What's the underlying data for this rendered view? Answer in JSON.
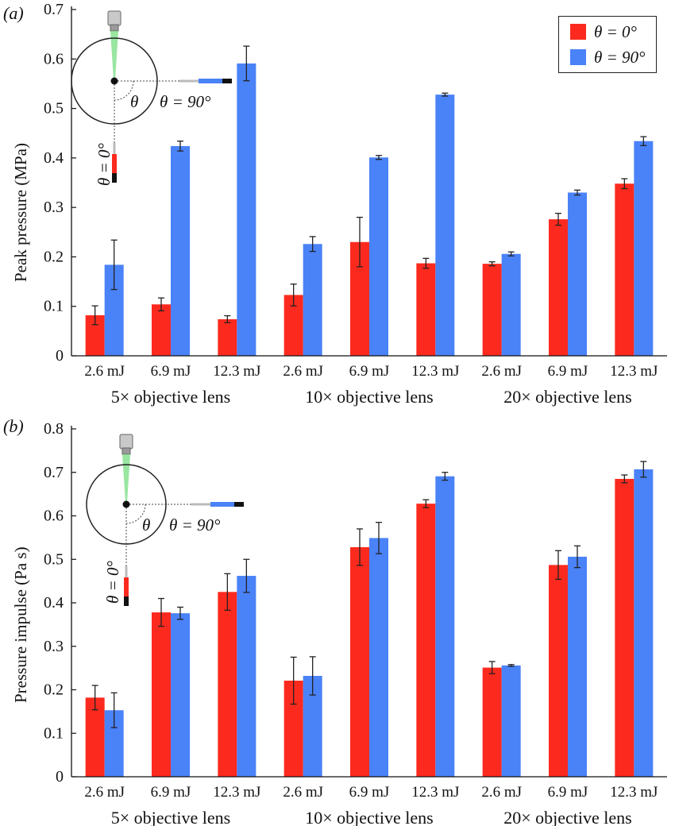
{
  "colors": {
    "theta0": "#fc2a1e",
    "theta90": "#4a82f7",
    "axis": "#111111"
  },
  "legend": {
    "theta0_label": "θ = 0°",
    "theta90_label": "θ = 90°"
  },
  "inset": {
    "theta_symbol": "θ",
    "label_90": "θ = 90°",
    "label_0": "θ = 0°"
  },
  "chart_data": [
    {
      "type": "bar",
      "panel_label": "(a)",
      "ylabel": "Peak pressure (MPa)",
      "ylim": [
        0,
        0.7
      ],
      "yticks": [
        0,
        0.1,
        0.2,
        0.3,
        0.4,
        0.5,
        0.6,
        0.7
      ],
      "categories": [
        "2.6 mJ",
        "6.9 mJ",
        "12.3 mJ",
        "2.6 mJ",
        "6.9 mJ",
        "12.3 mJ",
        "2.6 mJ",
        "6.9 mJ",
        "12.3 mJ"
      ],
      "groups": [
        "5× objective lens",
        "10× objective lens",
        "20× objective lens"
      ],
      "legend_position": "top-right",
      "series": [
        {
          "name": "θ = 0°",
          "color": "#fc2a1e",
          "values": [
            0.082,
            0.104,
            0.074,
            0.123,
            0.23,
            0.187,
            0.186,
            0.276,
            0.348
          ],
          "errors": [
            0.019,
            0.013,
            0.007,
            0.022,
            0.05,
            0.01,
            0.004,
            0.012,
            0.01
          ]
        },
        {
          "name": "θ = 90°",
          "color": "#4a82f7",
          "values": [
            0.184,
            0.424,
            0.591,
            0.226,
            0.401,
            0.528,
            0.206,
            0.33,
            0.434
          ],
          "errors": [
            0.05,
            0.01,
            0.035,
            0.015,
            0.004,
            0.003,
            0.004,
            0.005,
            0.009
          ]
        }
      ]
    },
    {
      "type": "bar",
      "panel_label": "(b)",
      "ylabel": "Pressure impulse (Pa s)",
      "ylim": [
        0,
        0.8
      ],
      "yticks": [
        0,
        0.1,
        0.2,
        0.3,
        0.4,
        0.5,
        0.6,
        0.7,
        0.8
      ],
      "categories": [
        "2.6 mJ",
        "6.9 mJ",
        "12.3 mJ",
        "2.6 mJ",
        "6.9 mJ",
        "12.3 mJ",
        "2.6 mJ",
        "6.9 mJ",
        "12.3 mJ"
      ],
      "groups": [
        "5× objective lens",
        "10× objective lens",
        "20× objective lens"
      ],
      "series": [
        {
          "name": "θ = 0°",
          "color": "#fc2a1e",
          "values": [
            0.182,
            0.378,
            0.425,
            0.221,
            0.528,
            0.628,
            0.251,
            0.487,
            0.685
          ],
          "errors": [
            0.028,
            0.032,
            0.042,
            0.054,
            0.042,
            0.009,
            0.014,
            0.033,
            0.009
          ]
        },
        {
          "name": "θ = 90°",
          "color": "#4a82f7",
          "values": [
            0.153,
            0.376,
            0.462,
            0.232,
            0.549,
            0.691,
            0.256,
            0.506,
            0.707
          ],
          "errors": [
            0.04,
            0.014,
            0.038,
            0.044,
            0.036,
            0.009,
            0.002,
            0.025,
            0.018
          ]
        }
      ]
    }
  ]
}
